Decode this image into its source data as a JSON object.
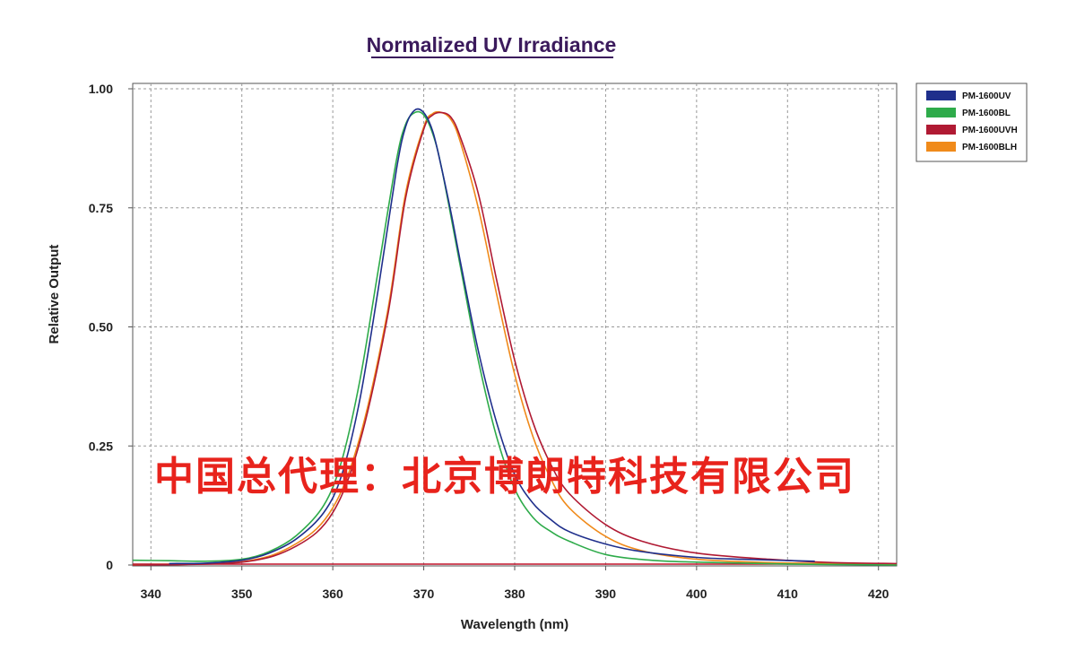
{
  "chart_data": {
    "type": "line",
    "title": "Normalized UV Irradiance",
    "xlabel": "Wavelength (nm)",
    "ylabel": "Relative Output",
    "xlim": [
      338,
      422
    ],
    "ylim": [
      0,
      1.0
    ],
    "x_ticks": [
      340,
      350,
      360,
      370,
      380,
      390,
      400,
      410,
      420
    ],
    "y_ticks": [
      0,
      0.25,
      0.5,
      0.75,
      1.0
    ],
    "y_tick_labels": [
      "0",
      "0.25",
      "0.50",
      "0.75",
      "1.00"
    ],
    "grid": true,
    "legend_position": "top-right outside",
    "series": [
      {
        "name": "PM-1600UV",
        "color": "#1f2f8c",
        "x": [
          342,
          346,
          350,
          353,
          356,
          359,
          361,
          363,
          365,
          367,
          368,
          369,
          370,
          371,
          372,
          373,
          374,
          376,
          378,
          380,
          382,
          384,
          386,
          390,
          394,
          400,
          405,
          413
        ],
        "y": [
          0.003,
          0.004,
          0.01,
          0.025,
          0.055,
          0.11,
          0.19,
          0.35,
          0.58,
          0.83,
          0.92,
          0.955,
          0.95,
          0.91,
          0.83,
          0.74,
          0.64,
          0.45,
          0.3,
          0.19,
          0.13,
          0.095,
          0.07,
          0.044,
          0.028,
          0.016,
          0.012,
          0.008
        ]
      },
      {
        "name": "PM-1600BL",
        "color": "#2eab4a",
        "x": [
          338,
          342,
          346,
          350,
          353,
          356,
          359,
          361,
          363,
          365,
          367,
          368,
          369,
          370,
          371,
          372,
          374,
          376,
          378,
          380,
          382,
          384,
          386,
          390,
          395,
          400,
          410,
          422
        ],
        "y": [
          0.01,
          0.009,
          0.008,
          0.012,
          0.028,
          0.062,
          0.125,
          0.22,
          0.39,
          0.62,
          0.85,
          0.925,
          0.95,
          0.945,
          0.905,
          0.83,
          0.63,
          0.43,
          0.27,
          0.16,
          0.1,
          0.07,
          0.05,
          0.022,
          0.01,
          0.006,
          0.002,
          0.0
        ]
      },
      {
        "name": "PM-1600UVH",
        "color": "#b01a33",
        "x": [
          338,
          350,
          356,
          360,
          363,
          366,
          368,
          370,
          371,
          372,
          373,
          374,
          376,
          378,
          380,
          382,
          384,
          386,
          390,
          394,
          400,
          408,
          415,
          422
        ],
        "y": [
          0.0,
          0.006,
          0.04,
          0.11,
          0.26,
          0.52,
          0.77,
          0.915,
          0.945,
          0.95,
          0.94,
          0.9,
          0.78,
          0.6,
          0.43,
          0.3,
          0.21,
          0.15,
          0.085,
          0.05,
          0.025,
          0.012,
          0.005,
          0.003
        ]
      },
      {
        "name": "PM-1600BLH",
        "color": "#f08a1a",
        "x": [
          338,
          350,
          356,
          360,
          363,
          366,
          368,
          370,
          371,
          372,
          373,
          374,
          376,
          378,
          380,
          382,
          384,
          386,
          390,
          394,
          400,
          408,
          415,
          422
        ],
        "y": [
          0.0,
          0.007,
          0.045,
          0.12,
          0.27,
          0.53,
          0.78,
          0.92,
          0.948,
          0.95,
          0.935,
          0.89,
          0.75,
          0.57,
          0.4,
          0.27,
          0.18,
          0.12,
          0.06,
          0.03,
          0.012,
          0.005,
          0.003,
          0.002
        ]
      }
    ],
    "baseline_color": "#c0152b"
  },
  "watermark_text": "中国总代理：北京博朗特科技有限公司"
}
